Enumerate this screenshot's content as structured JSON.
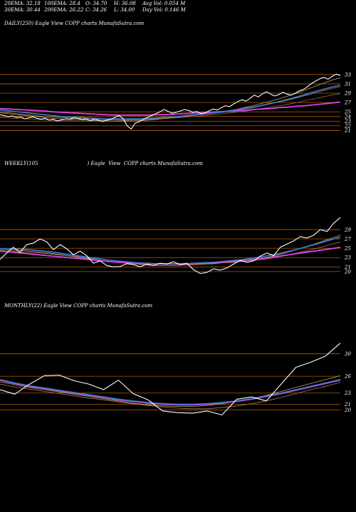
{
  "header": {
    "ema20": "20EMA: 32.18",
    "ema100": "100EMA: 28.4",
    "open": "O: 34.70",
    "high": "H: 36.08",
    "avgvol": "Avg Vol: 0.054  M",
    "ema30": "30EMA: 30.44",
    "ema200": "200EMA: 26.22",
    "close": "C: 34.26",
    "low": "L: 34.00",
    "dayvol": "Day Vol: 0.146  M"
  },
  "colors": {
    "background": "#000000",
    "price": "#ffffff",
    "level_line": "#b35a00",
    "ema_fast": "#c8a060",
    "ema_mid": "#a08060",
    "ema_blue": "#3a7bd5",
    "ema_magenta": "#e040e0"
  },
  "chart_data": [
    {
      "type": "line",
      "title": "DAILY(250) Eagle  View  COPP charts MunafaSutra.com",
      "ylevels": [
        33,
        31,
        29,
        27,
        25,
        24,
        23,
        22,
        21
      ],
      "ylim": [
        20,
        34.5
      ],
      "series": [
        {
          "role": "price",
          "values": [
            24.4,
            24.2,
            24.0,
            24.1,
            23.8,
            23.9,
            23.5,
            23.7,
            23.9,
            23.6,
            23.4,
            23.6,
            23.2,
            23.4,
            23.0,
            23.3,
            23.5,
            23.4,
            23.7,
            23.6,
            23.3,
            23.5,
            23.1,
            23.4,
            23.2,
            22.9,
            23.2,
            23.4,
            23.8,
            24.2,
            23.6,
            22.0,
            21.3,
            22.6,
            22.9,
            23.4,
            23.8,
            24.2,
            24.6,
            25.0,
            25.5,
            25.1,
            24.7,
            24.9,
            25.2,
            25.5,
            25.3,
            24.9,
            25.1,
            24.6,
            24.8,
            25.2,
            25.6,
            25.4,
            25.9,
            26.3,
            26.1,
            26.7,
            27.2,
            27.6,
            27.3,
            27.9,
            28.6,
            28.2,
            28.9,
            29.3,
            28.8,
            28.4,
            28.7,
            29.2,
            28.8,
            28.6,
            29.0,
            29.5,
            29.8,
            30.4,
            31.1,
            31.6,
            32.1,
            32.4,
            32.0,
            32.6,
            33.1,
            32.8
          ]
        },
        {
          "role": "ema_fast",
          "values": [
            24.8,
            24.6,
            24.4,
            24.2,
            24.0,
            23.8,
            23.6,
            23.5,
            23.4,
            23.3,
            23.2,
            23.1,
            23.1,
            23.0,
            23.0,
            23.0,
            23.1,
            23.2,
            23.4,
            23.6,
            23.8,
            24.0,
            24.2,
            24.4,
            24.6,
            24.9,
            25.2,
            25.5,
            25.9,
            26.3,
            26.8,
            27.3,
            27.8,
            28.4,
            29.0,
            29.7,
            30.4,
            31.1,
            31.8,
            32.3
          ]
        },
        {
          "role": "ema_mid",
          "values": [
            25.0,
            24.8,
            24.6,
            24.4,
            24.2,
            24.0,
            23.9,
            23.8,
            23.7,
            23.6,
            23.5,
            23.4,
            23.3,
            23.3,
            23.3,
            23.3,
            23.3,
            23.4,
            23.5,
            23.6,
            23.8,
            24.0,
            24.2,
            24.4,
            24.6,
            24.8,
            25.0,
            25.3,
            25.6,
            25.9,
            26.3,
            26.7,
            27.1,
            27.5,
            28.0,
            28.5,
            29.0,
            29.5,
            30.0,
            30.4
          ]
        },
        {
          "role": "ema_slow",
          "values": [
            23.8,
            23.7,
            23.6,
            23.5,
            23.4,
            23.3,
            23.2,
            23.1,
            23.1,
            23.0,
            23.0,
            23.0,
            23.0,
            23.0,
            23.1,
            23.2,
            23.3,
            23.4,
            23.5,
            23.6,
            23.7,
            23.8,
            24.0,
            24.1,
            24.3,
            24.5,
            24.7,
            24.9,
            25.1,
            25.4,
            25.7,
            26.0,
            26.3,
            26.6,
            27.0,
            27.4,
            27.8,
            28.2,
            28.6,
            28.9
          ]
        },
        {
          "role": "ema_blue",
          "values": [
            25.4,
            25.2,
            25.0,
            24.8,
            24.6,
            24.4,
            24.2,
            24.0,
            23.9,
            23.8,
            23.7,
            23.6,
            23.5,
            23.5,
            23.5,
            23.5,
            23.5,
            23.6,
            23.7,
            23.8,
            23.9,
            24.1,
            24.3,
            24.5,
            24.7,
            24.9,
            25.1,
            25.4,
            25.7,
            26.0,
            26.4,
            26.8,
            27.2,
            27.7,
            28.2,
            28.7,
            29.3,
            29.8,
            30.3,
            30.7
          ]
        },
        {
          "role": "ema_magenta",
          "values": [
            25.7,
            25.6,
            25.5,
            25.4,
            25.3,
            25.2,
            25.0,
            24.9,
            24.8,
            24.7,
            24.6,
            24.5,
            24.4,
            24.3,
            24.3,
            24.3,
            24.3,
            24.3,
            24.4,
            24.4,
            24.5,
            24.6,
            24.7,
            24.8,
            24.9,
            25.0,
            25.1,
            25.2,
            25.3,
            25.5,
            25.6,
            25.7,
            25.9,
            26.0,
            26.2,
            26.3,
            26.5,
            26.7,
            26.9,
            27.1
          ]
        }
      ]
    },
    {
      "type": "line",
      "title": "WEEKLY(105                               ) Eagle  View  COPP charts MunafaSutra.com",
      "ylevels": [
        29,
        27,
        25,
        23,
        21,
        20
      ],
      "ylim": [
        18,
        32.5
      ],
      "series": [
        {
          "role": "price",
          "values": [
            22.6,
            24.0,
            25.2,
            24.1,
            25.8,
            26.1,
            27.0,
            26.4,
            24.7,
            25.8,
            24.9,
            23.6,
            24.4,
            23.4,
            21.8,
            22.3,
            21.3,
            21.0,
            21.1,
            21.7,
            21.5,
            21.0,
            21.6,
            21.3,
            21.8,
            21.6,
            22.1,
            21.5,
            21.8,
            20.4,
            19.6,
            19.8,
            20.6,
            20.3,
            20.8,
            21.6,
            22.4,
            22.0,
            22.3,
            23.3,
            24.0,
            23.4,
            25.2,
            25.9,
            26.6,
            27.5,
            27.2,
            27.8,
            29.0,
            28.6,
            30.4,
            31.6
          ]
        },
        {
          "role": "ema_fast",
          "values": [
            24.6,
            24.6,
            24.5,
            24.4,
            24.2,
            24.0,
            23.7,
            23.4,
            23.1,
            22.8,
            22.5,
            22.2,
            22.0,
            21.8,
            21.6,
            21.4,
            21.3,
            21.3,
            21.3,
            21.4,
            21.5,
            21.6,
            21.7,
            21.9,
            22.0,
            22.3,
            22.6,
            22.9,
            23.3,
            23.8,
            24.4,
            25.1,
            25.7,
            26.4,
            27.1,
            27.8
          ]
        },
        {
          "role": "ema_mid",
          "values": [
            24.3,
            24.3,
            24.2,
            24.1,
            24.0,
            23.8,
            23.6,
            23.4,
            23.2,
            22.9,
            22.7,
            22.5,
            22.3,
            22.1,
            21.9,
            21.8,
            21.7,
            21.6,
            21.6,
            21.6,
            21.6,
            21.7,
            21.8,
            21.9,
            22.0,
            22.2,
            22.4,
            22.6,
            22.9,
            23.3,
            23.7,
            24.2,
            24.7,
            25.2,
            25.8,
            26.4
          ]
        },
        {
          "role": "ema_blue",
          "values": [
            24.9,
            24.9,
            24.8,
            24.7,
            24.5,
            24.3,
            24.0,
            23.7,
            23.4,
            23.1,
            22.8,
            22.5,
            22.3,
            22.1,
            21.9,
            21.8,
            21.7,
            21.7,
            21.7,
            21.7,
            21.8,
            21.9,
            22.0,
            22.2,
            22.4,
            22.6,
            22.9,
            23.2,
            23.6,
            24.0,
            24.5,
            25.0,
            25.6,
            26.2,
            26.8,
            27.4
          ]
        },
        {
          "role": "ema_magenta",
          "values": [
            24.4,
            24.2,
            24.0,
            23.8,
            23.6,
            23.4,
            23.2,
            23.0,
            22.8,
            22.6,
            22.4,
            22.2,
            22.0,
            21.9,
            21.8,
            21.7,
            21.6,
            21.6,
            21.6,
            21.6,
            21.7,
            21.8,
            21.9,
            22.0,
            22.2,
            22.4,
            22.6,
            22.8,
            23.1,
            23.4,
            23.7,
            24.0,
            24.3,
            24.6,
            24.9,
            25.2
          ]
        }
      ]
    },
    {
      "type": "line",
      "title": "MONTHLY(22) Eagle  View  COPP charts MunafaSutra.com",
      "ylevels": [
        30,
        26,
        23,
        21,
        20
      ],
      "ylim": [
        17,
        33.5
      ],
      "series": [
        {
          "role": "price",
          "values": [
            23.6,
            22.8,
            24.6,
            26.1,
            26.2,
            25.2,
            24.6,
            23.6,
            25.3,
            22.9,
            21.8,
            19.8,
            19.5,
            19.4,
            19.8,
            19.1,
            21.9,
            22.3,
            21.6,
            24.6,
            27.6,
            28.5,
            29.6,
            31.9
          ]
        },
        {
          "role": "ema_fast",
          "values": [
            25.0,
            24.5,
            24.0,
            23.6,
            23.2,
            22.8,
            22.4,
            22.0,
            21.6,
            21.2,
            20.9,
            20.7,
            20.6,
            20.6,
            20.8,
            21.1,
            21.5,
            22.0,
            22.6,
            23.3,
            24.0,
            24.7,
            25.4,
            26.1
          ]
        },
        {
          "role": "ema_mid",
          "values": [
            24.6,
            24.1,
            23.7,
            23.3,
            22.9,
            22.5,
            22.1,
            21.8,
            21.4,
            21.1,
            20.8,
            20.5,
            20.3,
            20.2,
            20.2,
            20.4,
            20.7,
            21.1,
            21.6,
            22.2,
            22.9,
            23.6,
            24.2,
            24.9
          ]
        },
        {
          "role": "ema_blue",
          "values": [
            25.4,
            24.8,
            24.3,
            23.9,
            23.5,
            23.1,
            22.7,
            22.3,
            21.9,
            21.6,
            21.3,
            21.1,
            21.0,
            21.0,
            21.1,
            21.3,
            21.6,
            22.0,
            22.5,
            23.0,
            23.6,
            24.2,
            24.8,
            25.4
          ]
        },
        {
          "role": "ema_magenta",
          "values": [
            25.3,
            24.7,
            24.2,
            23.8,
            23.4,
            23.0,
            22.6,
            22.2,
            21.8,
            21.5,
            21.2,
            21.0,
            20.9,
            20.9,
            21.0,
            21.2,
            21.5,
            21.9,
            22.4,
            22.9,
            23.5,
            24.1,
            24.7,
            25.3
          ]
        }
      ]
    }
  ]
}
